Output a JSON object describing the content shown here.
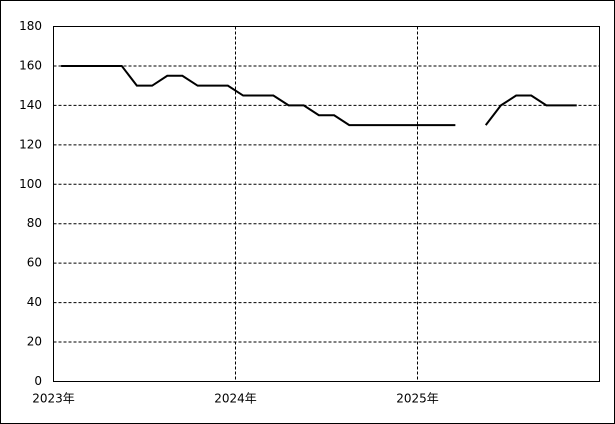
{
  "chart_data": {
    "type": "line",
    "x": [
      2023.042,
      2023.125,
      2023.208,
      2023.292,
      2023.375,
      2023.458,
      2023.542,
      2023.625,
      2023.708,
      2023.792,
      2023.875,
      2023.958,
      2024.042,
      2024.125,
      2024.208,
      2024.292,
      2024.375,
      2024.458,
      2024.542,
      2024.625,
      2024.708,
      2024.792,
      2024.875,
      2024.958,
      2025.042,
      2025.125,
      2025.208,
      2025.292,
      2025.375,
      2025.458,
      2025.542,
      2025.625,
      2025.708,
      2025.792,
      2025.875
    ],
    "values": [
      160,
      160,
      160,
      160,
      160,
      150,
      150,
      155,
      155,
      150,
      150,
      150,
      145,
      145,
      145,
      140,
      140,
      135,
      135,
      130,
      130,
      130,
      130,
      130,
      130,
      130,
      130,
      null,
      130,
      140,
      145,
      145,
      140,
      140,
      140
    ],
    "color": "#000000",
    "xlim": [
      2023,
      2026
    ],
    "xticks": [
      {
        "value": 2023,
        "label": "2023年"
      },
      {
        "value": 2024,
        "label": "2024年"
      },
      {
        "value": 2025,
        "label": "2025年"
      }
    ],
    "ylim": [
      0,
      180
    ],
    "yticks": [
      0,
      20,
      40,
      60,
      80,
      100,
      120,
      140,
      160,
      180
    ],
    "grid": true
  }
}
